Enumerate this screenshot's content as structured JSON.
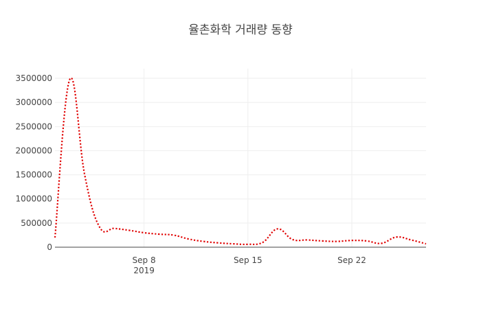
{
  "chart_data": {
    "type": "line",
    "title": "율촌화학 거래량 동향",
    "xlabel": "",
    "ylabel": "",
    "x_domain": [
      "2019-09-02",
      "2019-09-27"
    ],
    "ylim": [
      0,
      3700000
    ],
    "grid": true,
    "legend": "none",
    "x_ticks": [
      {
        "date": "2019-09-08",
        "label": "Sep 8",
        "sublabel": "2019"
      },
      {
        "date": "2019-09-15",
        "label": "Sep 15",
        "sublabel": ""
      },
      {
        "date": "2019-09-22",
        "label": "Sep 22",
        "sublabel": ""
      }
    ],
    "y_ticks": [
      0,
      500000,
      1000000,
      1500000,
      2000000,
      2500000,
      3000000,
      3500000
    ],
    "series": [
      {
        "color": "#e00000",
        "dash": "dot",
        "x": [
          "2019-09-02",
          "2019-09-03",
          "2019-09-04",
          "2019-09-05",
          "2019-09-06",
          "2019-09-07",
          "2019-09-08",
          "2019-09-09",
          "2019-09-10",
          "2019-09-11",
          "2019-09-12",
          "2019-09-13",
          "2019-09-14",
          "2019-09-15",
          "2019-09-16",
          "2019-09-17",
          "2019-09-18",
          "2019-09-19",
          "2019-09-20",
          "2019-09-21",
          "2019-09-22",
          "2019-09-23",
          "2019-09-24",
          "2019-09-25",
          "2019-09-26",
          "2019-09-27"
        ],
        "values": [
          200000,
          3480000,
          1500000,
          420000,
          390000,
          350000,
          300000,
          270000,
          250000,
          170000,
          120000,
          90000,
          70000,
          60000,
          100000,
          380000,
          160000,
          150000,
          130000,
          120000,
          140000,
          130000,
          80000,
          210000,
          150000,
          70000
        ]
      }
    ]
  }
}
